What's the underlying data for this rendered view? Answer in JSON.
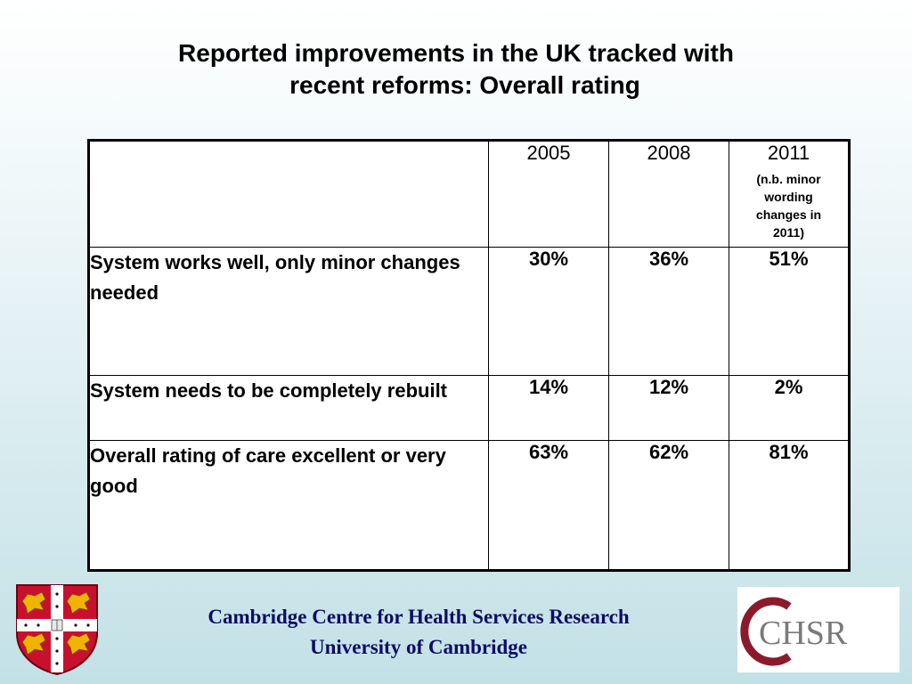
{
  "slide": {
    "title_line1": "Reported improvements in the UK tracked with",
    "title_line2": "recent reforms: Overall rating"
  },
  "table": {
    "header": {
      "blank": "",
      "years": [
        "2005",
        "2008",
        "2011"
      ],
      "note": "(n.b. minor wording changes in 2011)"
    },
    "rows": [
      {
        "label": "System works well, only minor changes needed",
        "values": [
          "30%",
          "36%",
          "51%"
        ]
      },
      {
        "label": "System needs to be completely rebuilt",
        "values": [
          "14%",
          "12%",
          "2%"
        ]
      },
      {
        "label": "Overall rating of care excellent or very good",
        "values": [
          "63%",
          "62%",
          "81%"
        ]
      }
    ]
  },
  "footer": {
    "line1": "Cambridge Centre for Health Services Research",
    "line2": "University of Cambridge"
  },
  "logos": {
    "crest": {
      "icon": "university-of-cambridge-crest-icon",
      "field_color": "#c8102e",
      "cross_color": "#ffffff",
      "lion_color": "#f0b400"
    },
    "chsr": {
      "icon": "chsr-logo-icon",
      "text": "CHSR",
      "c_color": "#8b1a2b",
      "text_color": "#7a7a7a"
    }
  }
}
